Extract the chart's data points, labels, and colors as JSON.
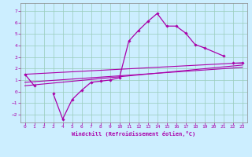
{
  "xlabel": "Windchill (Refroidissement éolien,°C)",
  "bg_color": "#cceeff",
  "grid_color": "#99ccbb",
  "line_color": "#aa00aa",
  "spine_color": "#888888",
  "xlim": [
    -0.5,
    23.5
  ],
  "ylim": [
    -2.7,
    7.7
  ],
  "xticks": [
    0,
    1,
    2,
    3,
    4,
    5,
    6,
    7,
    8,
    9,
    10,
    11,
    12,
    13,
    14,
    15,
    16,
    17,
    18,
    19,
    20,
    21,
    22,
    23
  ],
  "yticks": [
    -2,
    -1,
    0,
    1,
    2,
    3,
    4,
    5,
    6,
    7
  ],
  "main_x": [
    0,
    1,
    3,
    4,
    5,
    6,
    7,
    8,
    9,
    10,
    11,
    12,
    13,
    14,
    15,
    16,
    17,
    18,
    19,
    21,
    22,
    23
  ],
  "main_y": [
    1.5,
    0.5,
    -0.2,
    -2.4,
    -0.7,
    0.1,
    0.8,
    0.9,
    1.0,
    1.2,
    4.4,
    5.3,
    6.1,
    6.8,
    5.7,
    5.7,
    5.1,
    4.1,
    3.8,
    3.1,
    2.5,
    2.5
  ],
  "seg_breaks": [
    1,
    19
  ],
  "line1_x": [
    0,
    23
  ],
  "line1_y": [
    1.5,
    2.5
  ],
  "line2_x": [
    0,
    23
  ],
  "line2_y": [
    0.5,
    2.3
  ],
  "line3_x": [
    0,
    23
  ],
  "line3_y": [
    0.8,
    2.1
  ]
}
